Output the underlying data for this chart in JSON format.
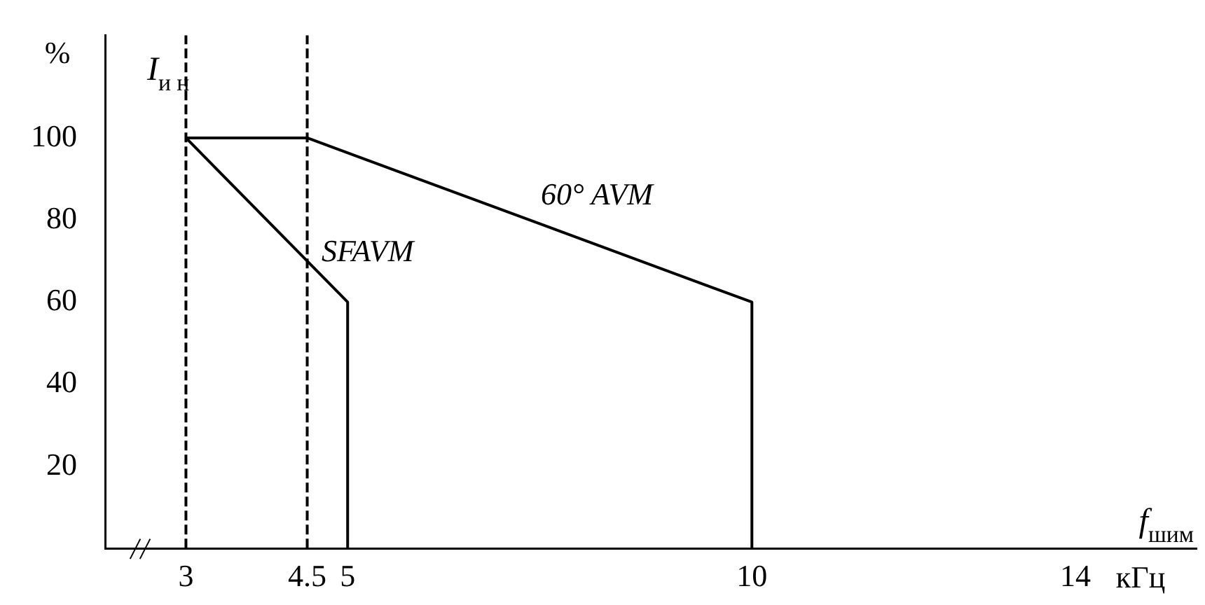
{
  "chart_data": {
    "type": "line",
    "xlabel": "f$_{шим}$",
    "ylabel": "I$_{и н}$",
    "annotations": [
      "%",
      "кГц"
    ],
    "xlim": [
      2,
      15.5
    ],
    "xticks": [
      3,
      4.5,
      5,
      10,
      14
    ],
    "ylim": [
      0,
      125
    ],
    "yticks": [
      20,
      40,
      60,
      80,
      100
    ],
    "marker": "none",
    "line_style": "solid",
    "series": [
      {
        "name": "60° AVM",
        "color": "#000000",
        "x": [
          3,
          4.5,
          10,
          10
        ],
        "values": [
          100,
          100,
          60,
          0
        ]
      },
      {
        "name": "SFAVM",
        "color": "#000000",
        "x": [
          3,
          5,
          5
        ],
        "values": [
          100,
          60,
          0
        ]
      }
    ],
    "ref_lines": [
      {
        "axis": "x",
        "value": 3,
        "color": "#000000",
        "line_style": "dashed"
      },
      {
        "axis": "x",
        "value": 4.5,
        "color": "#000000",
        "line_style": "dashed"
      }
    ]
  }
}
